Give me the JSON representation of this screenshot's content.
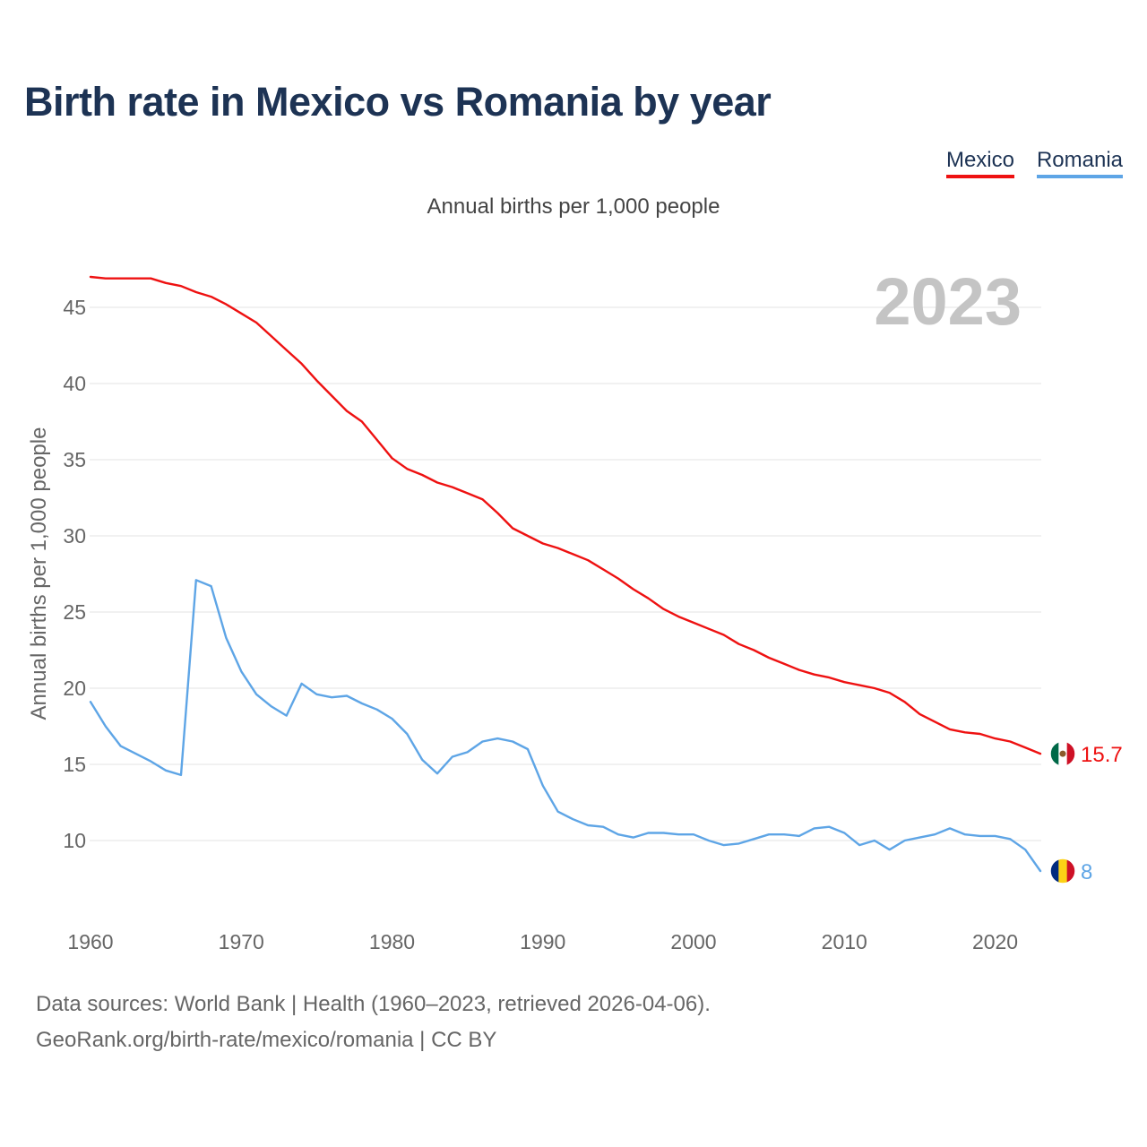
{
  "title": "Birth rate in Mexico vs Romania by year",
  "source": {
    "line1": "Data sources: World Bank | Health (1960–2023, retrieved 2026-04-06).",
    "line2": "GeoRank.org/birth-rate/mexico/romania | CC BY"
  },
  "colors": {
    "mexico": "#ee1111",
    "romania": "#5ea5e6",
    "title": "#1d3354",
    "year_watermark": "#c4c4c4",
    "grid": "#e3e3e3",
    "tick": "#666666"
  },
  "chart_data": {
    "type": "line",
    "title": "Birth rate in Mexico vs Romania by year",
    "subtitle": "Annual births per 1,000 people",
    "ylabel": "Annual births per 1,000 people",
    "xlabel": "",
    "year_label": "2023",
    "xlim": [
      1960,
      2023
    ],
    "ylim": [
      6,
      48
    ],
    "x_ticks": [
      1960,
      1970,
      1980,
      1990,
      2000,
      2010,
      2020
    ],
    "y_ticks": [
      10,
      15,
      20,
      25,
      30,
      35,
      40,
      45
    ],
    "grid": true,
    "legend": "top-right",
    "x": [
      1960,
      1961,
      1962,
      1963,
      1964,
      1965,
      1966,
      1967,
      1968,
      1969,
      1970,
      1971,
      1972,
      1973,
      1974,
      1975,
      1976,
      1977,
      1978,
      1979,
      1980,
      1981,
      1982,
      1983,
      1984,
      1985,
      1986,
      1987,
      1988,
      1989,
      1990,
      1991,
      1992,
      1993,
      1994,
      1995,
      1996,
      1997,
      1998,
      1999,
      2000,
      2001,
      2002,
      2003,
      2004,
      2005,
      2006,
      2007,
      2008,
      2009,
      2010,
      2011,
      2012,
      2013,
      2014,
      2015,
      2016,
      2017,
      2018,
      2019,
      2020,
      2021,
      2022,
      2023
    ],
    "series": [
      {
        "name": "Mexico",
        "color": "#ee1111",
        "end_label": "15.7",
        "values": [
          47.0,
          46.9,
          46.9,
          46.9,
          46.9,
          46.6,
          46.4,
          46.0,
          45.7,
          45.2,
          44.6,
          44.0,
          43.1,
          42.2,
          41.3,
          40.2,
          39.2,
          38.2,
          37.5,
          36.3,
          35.1,
          34.4,
          34.0,
          33.5,
          33.2,
          32.8,
          32.4,
          31.5,
          30.5,
          30.0,
          29.5,
          29.2,
          28.8,
          28.4,
          27.8,
          27.2,
          26.5,
          25.9,
          25.2,
          24.7,
          24.3,
          23.9,
          23.5,
          22.9,
          22.5,
          22.0,
          21.6,
          21.2,
          20.9,
          20.7,
          20.4,
          20.2,
          20.0,
          19.7,
          19.1,
          18.3,
          17.8,
          17.3,
          17.1,
          17.0,
          16.7,
          16.5,
          16.1,
          15.7
        ]
      },
      {
        "name": "Romania",
        "color": "#5ea5e6",
        "end_label": "8",
        "values": [
          19.1,
          17.5,
          16.2,
          15.7,
          15.2,
          14.6,
          14.3,
          27.1,
          26.7,
          23.3,
          21.1,
          19.6,
          18.8,
          18.2,
          20.3,
          19.6,
          19.4,
          19.5,
          19.0,
          18.6,
          18.0,
          17.0,
          15.3,
          14.4,
          15.5,
          15.8,
          16.5,
          16.7,
          16.5,
          16.0,
          13.6,
          11.9,
          11.4,
          11.0,
          10.9,
          10.4,
          10.2,
          10.5,
          10.5,
          10.4,
          10.4,
          10.0,
          9.7,
          9.8,
          10.1,
          10.4,
          10.4,
          10.3,
          10.8,
          10.9,
          10.5,
          9.7,
          10.0,
          9.4,
          10.0,
          10.2,
          10.4,
          10.8,
          10.4,
          10.3,
          10.3,
          10.1,
          9.4,
          8.0
        ]
      }
    ]
  }
}
